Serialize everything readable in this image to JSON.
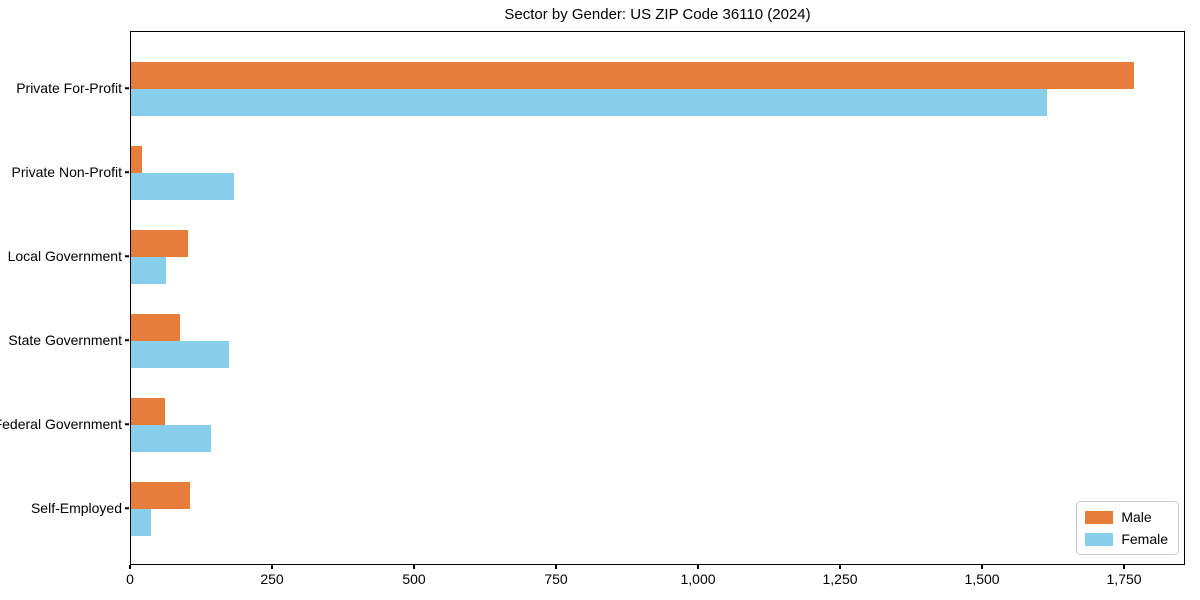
{
  "title": "Sector by Gender: US ZIP Code 36110 (2024)",
  "chart_data": {
    "type": "bar",
    "orientation": "horizontal",
    "title": "Sector by Gender: US ZIP Code 36110 (2024)",
    "categories": [
      "Private For-Profit",
      "Private Non-Profit",
      "Local Government",
      "State Government",
      "Federal Government",
      "Self-Employed"
    ],
    "series": [
      {
        "name": "Male",
        "color": "#E87D3B",
        "values": [
          1765,
          19,
          100,
          87,
          60,
          104
        ]
      },
      {
        "name": "Female",
        "color": "#87CEEB",
        "values": [
          1613,
          181,
          61,
          172,
          140,
          35
        ]
      }
    ],
    "xlabel": "",
    "ylabel": "",
    "xlim": [
      0,
      1852
    ],
    "x_ticks": [
      0,
      250,
      500,
      750,
      1000,
      1250,
      1500,
      1750
    ],
    "x_tick_labels": [
      "0",
      "250",
      "500",
      "750",
      "1,000",
      "1,250",
      "1,500",
      "1,750"
    ],
    "grid": false,
    "legend_position": "lower right"
  },
  "legend": {
    "items": [
      {
        "label": "Male"
      },
      {
        "label": "Female"
      }
    ]
  },
  "colors": {
    "male": "#E87D3B",
    "female": "#87CEEB",
    "axis": "#000000",
    "legend_border": "#cccccc",
    "background": "#ffffff"
  }
}
